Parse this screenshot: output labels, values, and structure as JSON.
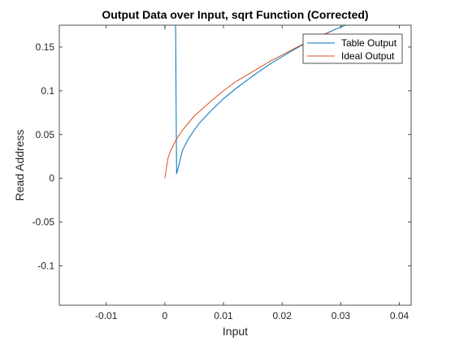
{
  "chart_data": {
    "type": "line",
    "title": "Output Data over Input, sqrt Function (Corrected)",
    "xlabel": "Input",
    "ylabel": "Read Address",
    "xlim": [
      -0.018,
      0.042
    ],
    "ylim": [
      -0.145,
      0.175
    ],
    "xticks": [
      -0.01,
      0,
      0.01,
      0.02,
      0.03,
      0.04
    ],
    "xtick_labels": [
      "-0.01",
      "0",
      "0.01",
      "0.02",
      "0.03",
      "0.04"
    ],
    "yticks": [
      -0.1,
      -0.05,
      0,
      0.05,
      0.1,
      0.15
    ],
    "ytick_labels": [
      "-0.1",
      "-0.05",
      "0",
      "0.05",
      "0.1",
      "0.15"
    ],
    "grid": false,
    "legend_position": "top-right",
    "series": [
      {
        "name": "Table Output",
        "color": "#0072BD",
        "x": [
          0,
          0.0003,
          0.0018,
          0.002,
          0.0025,
          0.003,
          0.004,
          0.005,
          0.006,
          0.008,
          0.01,
          0.012,
          0.015,
          0.018,
          0.02,
          0.022,
          0.025,
          0.028,
          0.03,
          0.032,
          0.033
        ],
        "y": [
          0.17,
          0.21,
          0.21,
          0.005,
          0.018,
          0.032,
          0.045,
          0.055,
          0.064,
          0.078,
          0.091,
          0.102,
          0.117,
          0.131,
          0.139,
          0.147,
          0.158,
          0.167,
          0.173,
          0.178,
          0.181
        ]
      },
      {
        "name": "Ideal Output",
        "color": "#D95319",
        "x": [
          0,
          0.0005,
          0.001,
          0.002,
          0.003,
          0.004,
          0.005,
          0.006,
          0.008,
          0.01,
          0.012,
          0.015,
          0.018,
          0.02,
          0.022,
          0.025,
          0.027,
          0.028
        ],
        "y": [
          0,
          0.022,
          0.032,
          0.045,
          0.055,
          0.063,
          0.071,
          0.077,
          0.089,
          0.1,
          0.11,
          0.122,
          0.134,
          0.141,
          0.148,
          0.158,
          0.164,
          0.167
        ]
      }
    ]
  }
}
